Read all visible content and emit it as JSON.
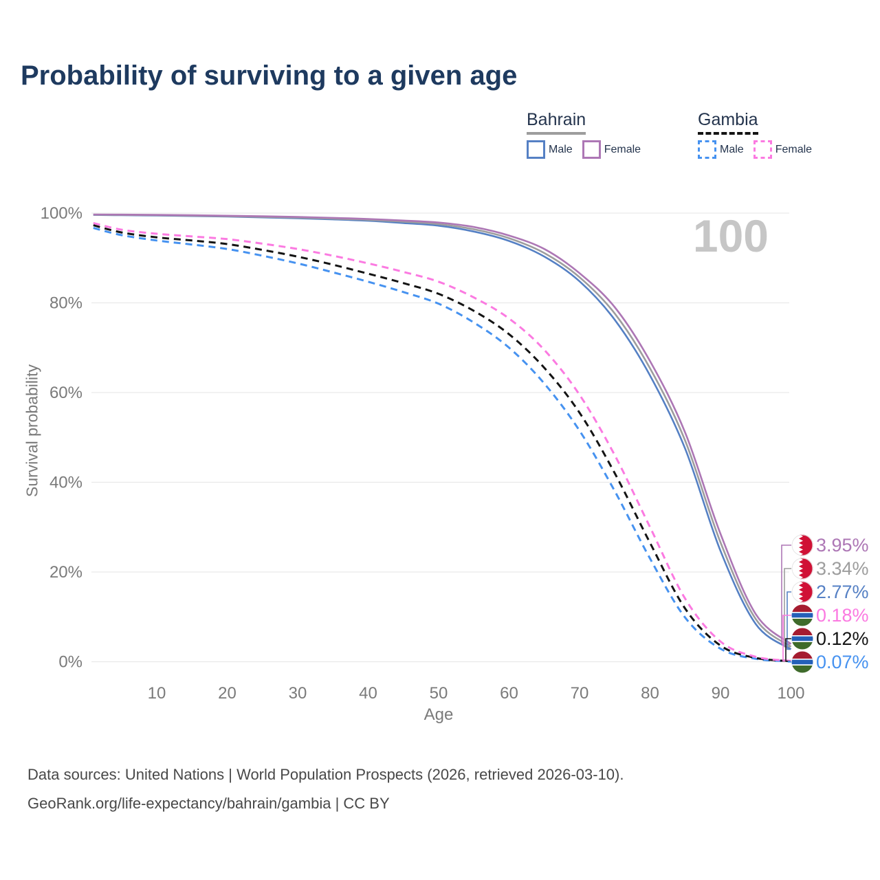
{
  "title": "Probability of surviving to a given age",
  "legend": {
    "groups": [
      {
        "name": "Bahrain",
        "rule_style": "solid",
        "rule_color": "#9d9d9d",
        "items": [
          {
            "label": "Male",
            "series": "bahrain_male"
          },
          {
            "label": "Female",
            "series": "bahrain_female"
          }
        ]
      },
      {
        "name": "Gambia",
        "rule_style": "dashed",
        "rule_color": "#141414",
        "items": [
          {
            "label": "Male",
            "series": "gambia_male"
          },
          {
            "label": "Female",
            "series": "gambia_female"
          }
        ]
      }
    ]
  },
  "chart_data": {
    "type": "line",
    "x_label": "Age",
    "y_label": "Survival probability",
    "watermark": "100",
    "x_ticks": [
      10,
      20,
      30,
      40,
      50,
      60,
      70,
      80,
      90,
      100
    ],
    "y_ticks": [
      {
        "v": 0,
        "label": "0%"
      },
      {
        "v": 20,
        "label": "20%"
      },
      {
        "v": 40,
        "label": "40%"
      },
      {
        "v": 60,
        "label": "60%"
      },
      {
        "v": 80,
        "label": "80%"
      },
      {
        "v": 100,
        "label": "100%"
      }
    ],
    "x_range": [
      1,
      100
    ],
    "y_range": [
      0,
      100
    ],
    "grid": true,
    "ages": [
      1,
      5,
      10,
      15,
      20,
      25,
      30,
      35,
      40,
      45,
      50,
      55,
      60,
      65,
      70,
      75,
      80,
      85,
      90,
      95,
      100
    ],
    "series": [
      {
        "id": "bahrain_female",
        "name": "Bahrain Female",
        "country": "Bahrain",
        "sex": "Female",
        "color": "#ad77b5",
        "dash": false,
        "flag": "bahrain",
        "end_label": "3.95%",
        "values": [
          99.7,
          99.66,
          99.6,
          99.52,
          99.42,
          99.3,
          99.15,
          98.95,
          98.7,
          98.35,
          97.9,
          96.9,
          95.0,
          92.0,
          86.6,
          79.0,
          67.0,
          51.0,
          28.5,
          10.6,
          3.95
        ]
      },
      {
        "id": "bahrain_all",
        "name": "Bahrain",
        "country": "Bahrain",
        "sex": "Both",
        "color": "#9d9d9d",
        "dash": false,
        "flag": "bahrain",
        "end_label": "3.34%",
        "values": [
          99.65,
          99.6,
          99.54,
          99.44,
          99.33,
          99.18,
          99.0,
          98.78,
          98.5,
          98.1,
          97.55,
          96.4,
          94.4,
          91.1,
          85.7,
          77.6,
          65.4,
          49.2,
          26.6,
          9.5,
          3.34
        ]
      },
      {
        "id": "bahrain_male",
        "name": "Bahrain Male",
        "country": "Bahrain",
        "sex": "Male",
        "color": "#5580c4",
        "dash": false,
        "flag": "bahrain",
        "end_label": "2.77%",
        "values": [
          99.6,
          99.54,
          99.47,
          99.36,
          99.23,
          99.05,
          98.85,
          98.6,
          98.3,
          97.8,
          97.2,
          95.9,
          93.8,
          90.3,
          84.8,
          76.2,
          63.8,
          47.4,
          24.7,
          8.4,
          2.77
        ]
      },
      {
        "id": "gambia_female",
        "name": "Gambia Female",
        "country": "Gambia",
        "sex": "Female",
        "color": "#fb7ae1",
        "dash": true,
        "flag": "gambia",
        "end_label": "0.18%",
        "values": [
          97.8,
          96.3,
          95.4,
          94.8,
          94.2,
          93.2,
          92.0,
          90.5,
          88.8,
          86.9,
          84.7,
          81.2,
          76.5,
          69.5,
          59.5,
          46.0,
          30.0,
          14.0,
          4.5,
          1.1,
          0.18
        ]
      },
      {
        "id": "gambia_all",
        "name": "Gambia",
        "country": "Gambia",
        "sex": "Both",
        "color": "#141414",
        "dash": true,
        "flag": "gambia",
        "end_label": "0.12%",
        "values": [
          97.3,
          95.7,
          94.6,
          93.9,
          93.1,
          91.8,
          90.3,
          88.5,
          86.5,
          84.4,
          82.0,
          78.2,
          73.0,
          65.5,
          55.5,
          42.0,
          26.5,
          11.8,
          3.6,
          0.85,
          0.12
        ]
      },
      {
        "id": "gambia_male",
        "name": "Gambia Male",
        "country": "Gambia",
        "sex": "Male",
        "color": "#4692f0",
        "dash": true,
        "flag": "gambia",
        "end_label": "0.07%",
        "values": [
          96.7,
          95.1,
          93.9,
          93.0,
          92.0,
          90.5,
          88.8,
          86.8,
          84.7,
          82.4,
          79.8,
          75.6,
          70.0,
          62.0,
          51.5,
          38.0,
          23.0,
          9.8,
          2.9,
          0.65,
          0.07
        ]
      }
    ],
    "end_label_order": [
      "bahrain_female",
      "bahrain_all",
      "bahrain_male",
      "gambia_female",
      "gambia_all",
      "gambia_male"
    ]
  },
  "colors": {
    "title": "#1e3a5f",
    "legend_text": "#24344d",
    "axis_text": "#7a7a7a",
    "grid": "#e9e9e9",
    "watermark": "#c6c6c6",
    "footer": "#484848",
    "bahrain_flag_red": "#d01035",
    "gambia_flag_red": "#a51c30",
    "gambia_flag_blue": "#2460b8",
    "gambia_flag_green": "#3f6b2b"
  },
  "footer": {
    "line1": "Data sources: United Nations | World Population Prospects (2026, retrieved 2026-03-10).",
    "line2": "GeoRank.org/life-expectancy/bahrain/gambia | CC BY"
  }
}
